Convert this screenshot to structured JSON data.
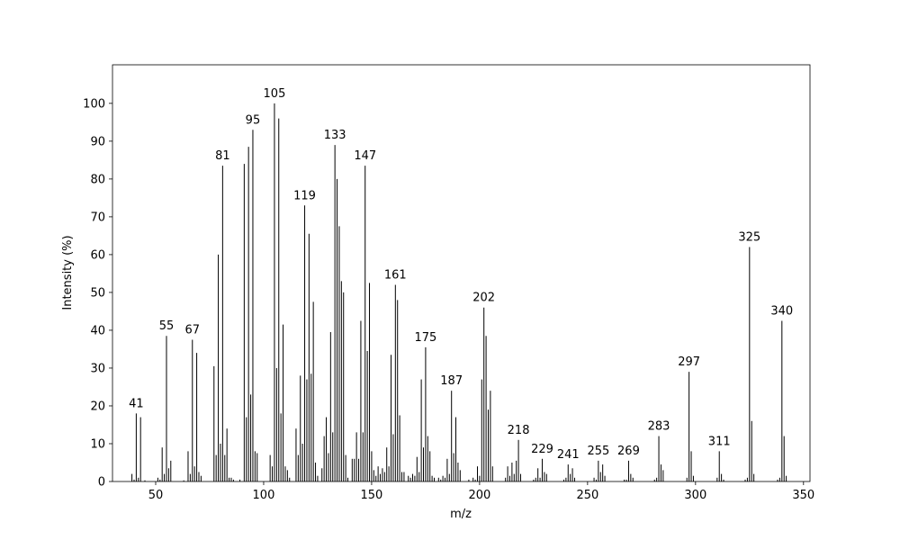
{
  "chart_data": {
    "type": "stem",
    "x_label": "m/z",
    "y_label": "Intensity (%)",
    "color": "#000000",
    "xlim": [
      30,
      353
    ],
    "xticks": [
      50,
      100,
      150,
      200,
      250,
      300,
      350
    ],
    "ylim": [
      0,
      110.2
    ],
    "yticks": [
      0,
      10,
      20,
      30,
      40,
      50,
      60,
      70,
      80,
      90,
      100
    ],
    "x": [
      39,
      40,
      41,
      42,
      43,
      45,
      51,
      52,
      53,
      54,
      55,
      56,
      57,
      63,
      65,
      66,
      67,
      68,
      69,
      70,
      71,
      77,
      78,
      79,
      80,
      81,
      82,
      83,
      84,
      85,
      86,
      89,
      91,
      92,
      93,
      94,
      95,
      96,
      97,
      103,
      104,
      105,
      106,
      107,
      108,
      109,
      110,
      111,
      112,
      115,
      116,
      117,
      118,
      119,
      120,
      121,
      122,
      123,
      124,
      125,
      127,
      128,
      129,
      130,
      131,
      132,
      133,
      134,
      135,
      136,
      137,
      138,
      139,
      141,
      142,
      143,
      144,
      145,
      146,
      147,
      148,
      149,
      150,
      151,
      152,
      153,
      154,
      155,
      156,
      157,
      158,
      159,
      160,
      161,
      162,
      163,
      164,
      165,
      167,
      168,
      169,
      170,
      171,
      172,
      173,
      174,
      175,
      176,
      177,
      178,
      179,
      181,
      182,
      183,
      184,
      185,
      186,
      187,
      188,
      189,
      190,
      191,
      195,
      197,
      198,
      199,
      200,
      201,
      202,
      203,
      204,
      205,
      206,
      212,
      213,
      214,
      215,
      216,
      217,
      218,
      219,
      225,
      226,
      227,
      228,
      229,
      230,
      231,
      239,
      240,
      241,
      242,
      243,
      244,
      253,
      254,
      255,
      256,
      257,
      258,
      267,
      268,
      269,
      270,
      271,
      281,
      282,
      283,
      284,
      285,
      296,
      297,
      298,
      299,
      310,
      311,
      312,
      313,
      323,
      324,
      325,
      326,
      327,
      338,
      339,
      340,
      341,
      342
    ],
    "values": [
      2,
      0.5,
      18,
      1,
      17,
      0.3,
      1,
      0.5,
      9,
      2,
      38.5,
      3.5,
      5.5,
      0.3,
      8,
      2,
      37.5,
      4,
      34,
      2.5,
      1.5,
      30.5,
      7,
      60,
      10,
      83.5,
      7,
      14,
      1,
      1,
      0.5,
      0.5,
      84,
      17,
      88.5,
      23,
      93,
      8,
      7.5,
      7,
      4,
      100,
      30,
      96,
      18,
      41.5,
      4,
      3,
      1,
      14,
      7,
      28,
      10,
      73,
      27,
      65.5,
      28.5,
      47.5,
      5,
      1.5,
      3.5,
      12,
      17,
      7.5,
      39.5,
      13,
      89,
      80,
      67.5,
      53,
      50,
      7,
      1,
      6,
      6,
      13,
      6,
      42.5,
      13,
      83.5,
      34.5,
      52.5,
      8,
      3,
      1.5,
      4,
      2,
      3.5,
      2.5,
      9,
      4,
      33.5,
      12.5,
      52,
      48,
      17.5,
      2.5,
      2.5,
      1.5,
      1,
      2,
      1.5,
      6.5,
      2.5,
      27,
      9,
      35.5,
      12,
      8,
      1.5,
      1,
      1,
      0.5,
      1.5,
      1,
      6,
      2,
      24,
      7.5,
      17,
      5,
      3,
      0.5,
      1,
      0.5,
      4,
      1.5,
      27,
      46,
      38.5,
      19,
      24,
      4,
      1,
      4,
      1.5,
      5,
      2,
      5.5,
      11,
      2,
      0.5,
      1,
      3.5,
      1,
      6,
      2.5,
      2,
      0.5,
      1,
      4.5,
      2,
      3.5,
      1,
      1,
      0.5,
      5.5,
      2.5,
      4.5,
      1.5,
      0.5,
      0.5,
      5.5,
      2,
      1,
      0.5,
      1,
      12,
      4.5,
      3,
      1,
      29,
      8,
      1.5,
      1,
      8,
      2,
      0.5,
      0.5,
      1,
      62,
      16,
      2,
      0.5,
      1,
      42.5,
      12,
      1.5
    ],
    "peak_labels": [
      41,
      55,
      67,
      81,
      95,
      105,
      119,
      133,
      147,
      161,
      175,
      187,
      202,
      218,
      229,
      241,
      255,
      269,
      283,
      297,
      311,
      325,
      340
    ]
  }
}
